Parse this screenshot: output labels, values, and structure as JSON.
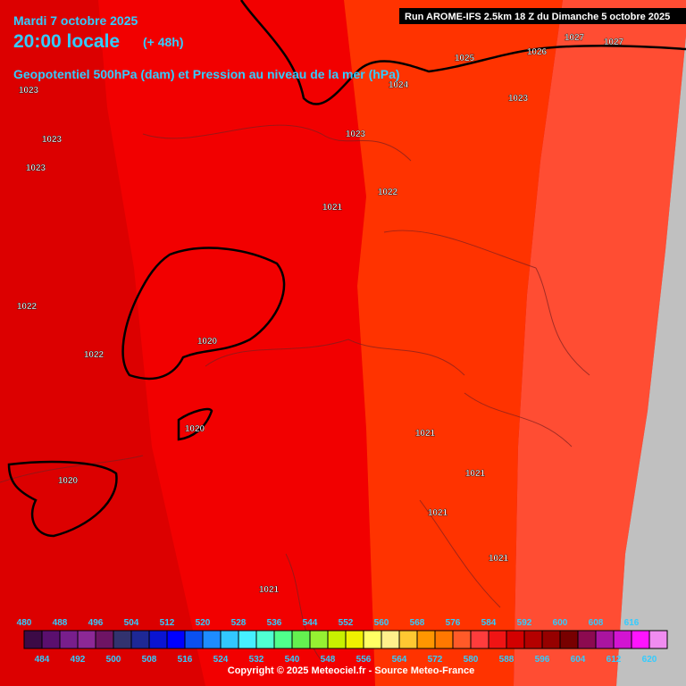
{
  "header": {
    "date": "Mardi 7 octobre 2025",
    "time": "20:00 locale",
    "lead": "(+ 48h)",
    "subtitle": "Geopotentiel 500hPa (dam) et Pression au niveau de la mer (hPa)",
    "run": "Run AROME-IFS 2.5km 18 Z du Dimanche 5 octobre 2025"
  },
  "isobar_labels": [
    1023,
    1023,
    1023,
    1022,
    1022,
    1020,
    1020,
    1020,
    1021,
    1022,
    1023,
    1024,
    1025,
    1026,
    1027,
    1027,
    1023,
    1021,
    1021,
    1021,
    1021,
    1021
  ],
  "colorbar": {
    "levels": [
      480,
      484,
      488,
      492,
      496,
      500,
      504,
      508,
      512,
      516,
      520,
      524,
      528,
      532,
      536,
      540,
      544,
      548,
      552,
      556,
      560,
      564,
      568,
      572,
      576,
      580,
      584,
      588,
      592,
      596,
      600,
      604,
      608,
      612,
      616,
      620
    ],
    "colors": [
      "#3c0a46",
      "#5a0f6e",
      "#781e8c",
      "#8c2896",
      "#6e1464",
      "#32326e",
      "#1e2896",
      "#0a14d2",
      "#0000ff",
      "#0a50f0",
      "#1e8cff",
      "#32c8ff",
      "#46f0ff",
      "#50ffd2",
      "#50ff8c",
      "#64f050",
      "#96f032",
      "#c8f000",
      "#f0f000",
      "#ffff64",
      "#fff08c",
      "#ffc832",
      "#ff9600",
      "#ff7800",
      "#ff5a28",
      "#ff3c3c",
      "#f01414",
      "#d20000",
      "#b40000",
      "#960000",
      "#780000",
      "#8c0a50",
      "#aa14a0",
      "#d214d2",
      "#ff14ff",
      "#f08cf0"
    ]
  },
  "copyright": "Copyright © 2025 Meteociel.fr - Source Meteo-France"
}
